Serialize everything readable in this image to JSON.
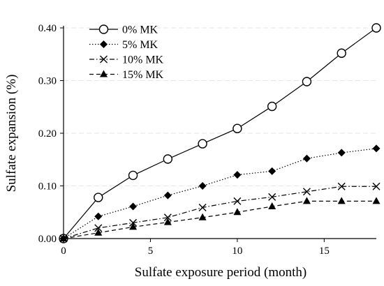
{
  "chart_data": {
    "type": "line",
    "xlabel": "Sulfate exposure period (month)",
    "ylabel": "Sulfate expansion (%)",
    "xlim": [
      0,
      18
    ],
    "ylim": [
      0,
      0.4
    ],
    "xticks": [
      0,
      5,
      10,
      15
    ],
    "xtick_labels": [
      "0",
      "5",
      "10",
      "15"
    ],
    "yticks": [
      0,
      0.1,
      0.2,
      0.3,
      0.4
    ],
    "ytick_labels": [
      "0.00",
      "0.10",
      "0.20",
      "0.30",
      "0.40"
    ],
    "grid": "horizontal dashed",
    "legend_position": "top-left",
    "x": [
      0,
      2,
      4,
      6,
      8,
      10,
      12,
      14,
      16,
      18
    ],
    "series": [
      {
        "name": "0% MK",
        "marker": "open-circle",
        "line": "solid",
        "values": [
          0,
          0.078,
          0.12,
          0.151,
          0.18,
          0.209,
          0.251,
          0.298,
          0.352,
          0.4
        ]
      },
      {
        "name": "5% MK",
        "marker": "filled-diamond",
        "line": "dotted",
        "values": [
          0,
          0.042,
          0.061,
          0.082,
          0.1,
          0.121,
          0.128,
          0.152,
          0.163,
          0.171
        ]
      },
      {
        "name": "10% MK",
        "marker": "cross",
        "line": "dash-dot",
        "values": [
          0,
          0.02,
          0.03,
          0.04,
          0.059,
          0.071,
          0.079,
          0.089,
          0.099,
          0.099
        ]
      },
      {
        "name": "15% MK",
        "marker": "filled-triangle",
        "line": "dashed",
        "values": [
          0,
          0.011,
          0.022,
          0.031,
          0.04,
          0.05,
          0.061,
          0.071,
          0.071,
          0.071
        ]
      }
    ]
  }
}
